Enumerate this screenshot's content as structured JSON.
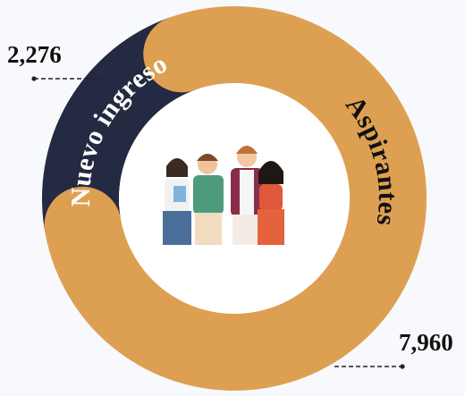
{
  "chart_data": {
    "type": "donut",
    "categories": [
      "Nuevo ingreso",
      "Aspirantes"
    ],
    "values": [
      2276,
      7960
    ],
    "value_labels": [
      "2,276",
      "7,960"
    ],
    "colors": [
      "#232a42",
      "#dda052"
    ],
    "label_colors": [
      "#ffffff",
      "#111111"
    ]
  }
}
